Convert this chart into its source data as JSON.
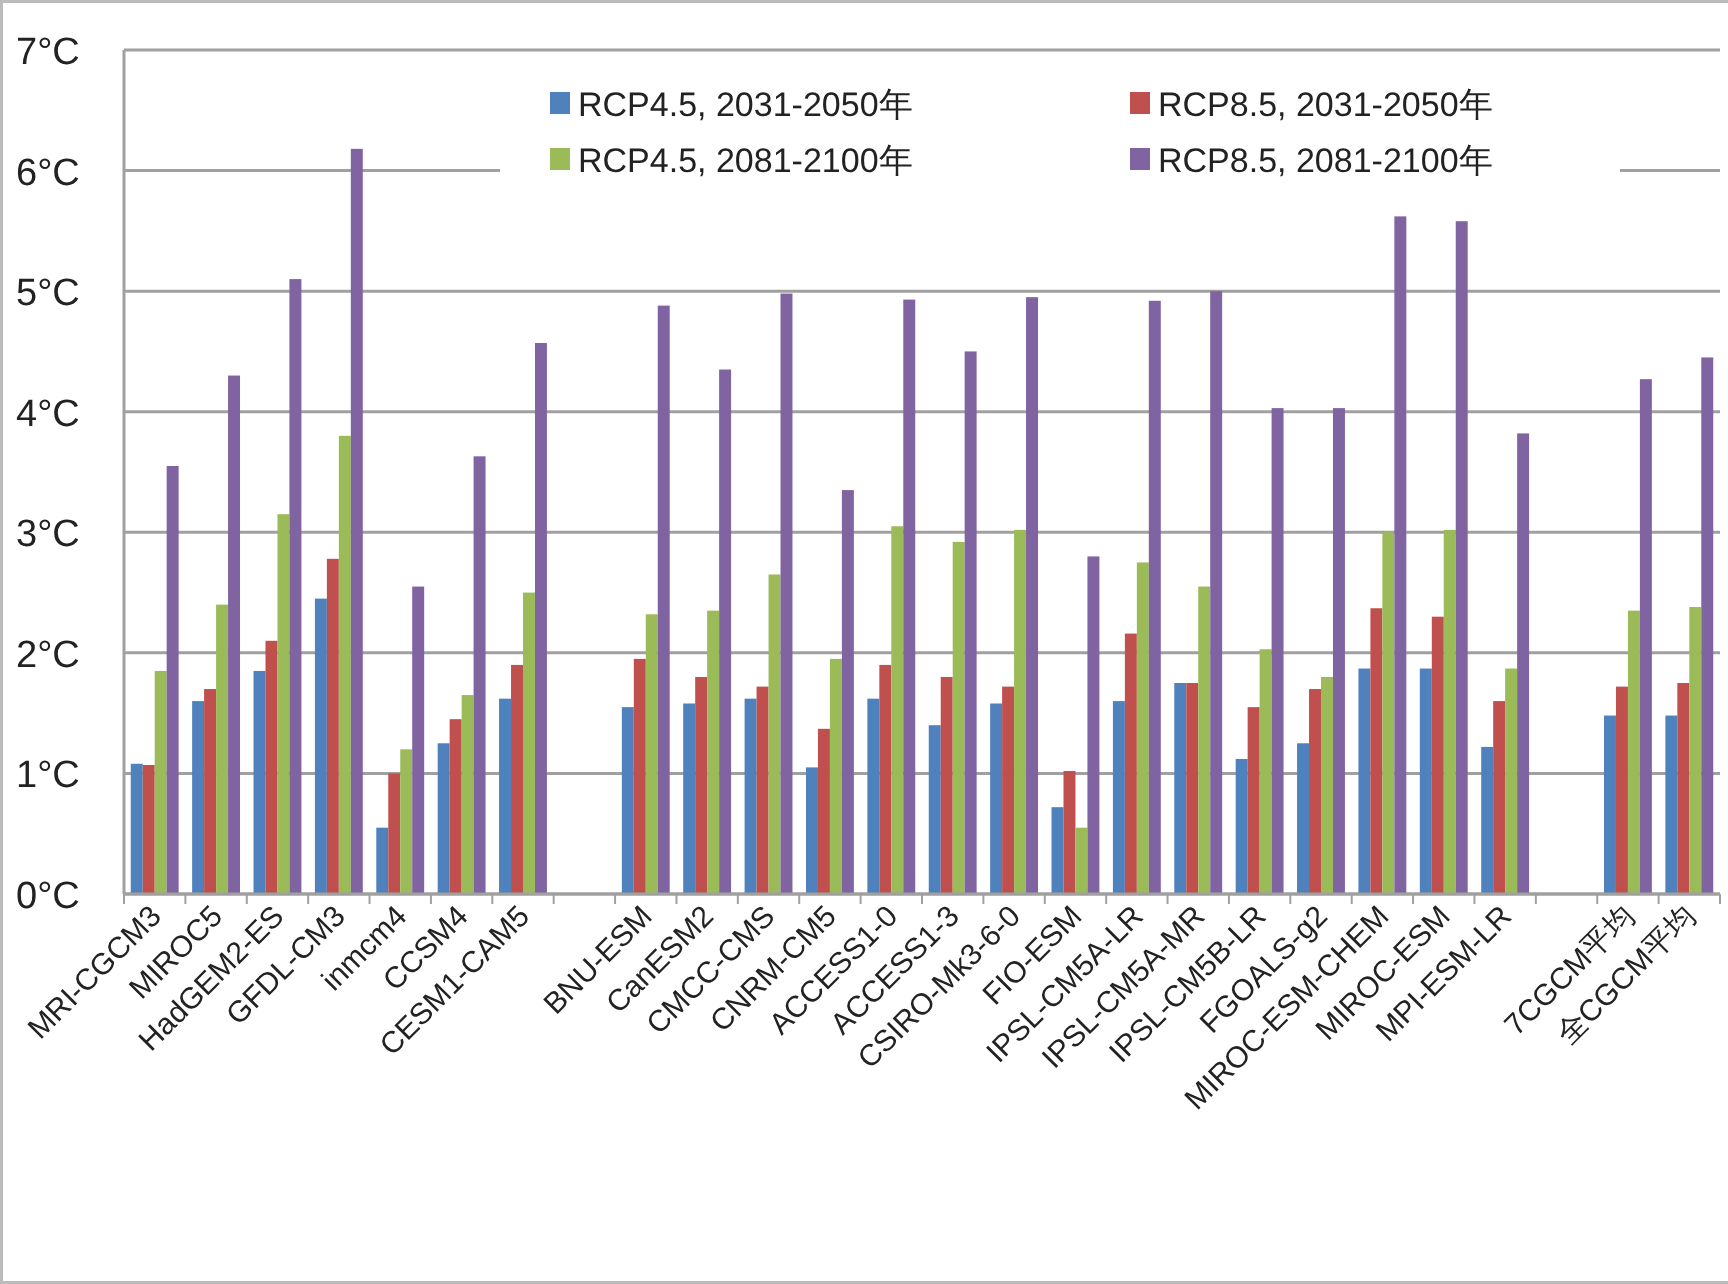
{
  "chart_data": {
    "type": "bar",
    "categories": [
      "MRI-CGCM3",
      "MIROC5",
      "HadGEM2-ES",
      "GFDL-CM3",
      "inmcm4",
      "CCSM4",
      "CESM1-CAM5",
      null,
      "BNU-ESM",
      "CanESM2",
      "CMCC-CMS",
      "CNRM-CM5",
      "ACCESS1-0",
      "ACCESS1-3",
      "CSIRO-Mk3-6-0",
      "FIO-ESM",
      "IPSL-CM5A-LR",
      "IPSL-CM5A-MR",
      "IPSL-CM5B-LR",
      "FGOALS-g2",
      "MIROC-ESM-CHEM",
      "MIROC-ESM",
      "MPI-ESM-LR",
      null,
      "7CGCM平均",
      "全CGCM平均"
    ],
    "series": [
      {
        "name": "RCP4.5, 2031-2050年",
        "color": "#4f81bd",
        "values": [
          1.08,
          1.6,
          1.85,
          2.45,
          0.55,
          1.25,
          1.62,
          null,
          1.55,
          1.58,
          1.62,
          1.05,
          1.62,
          1.4,
          1.58,
          0.72,
          1.6,
          1.75,
          1.12,
          1.25,
          1.87,
          1.87,
          1.22,
          null,
          1.48,
          1.48
        ]
      },
      {
        "name": "RCP8.5, 2031-2050年",
        "color": "#c0504d",
        "values": [
          1.07,
          1.7,
          2.1,
          2.78,
          1.0,
          1.45,
          1.9,
          null,
          1.95,
          1.8,
          1.72,
          1.37,
          1.9,
          1.8,
          1.72,
          1.02,
          2.16,
          1.75,
          1.55,
          1.7,
          2.37,
          2.3,
          1.6,
          null,
          1.72,
          1.75
        ]
      },
      {
        "name": "RCP4.5, 2081-2100年",
        "color": "#9bbb59",
        "values": [
          1.85,
          2.4,
          3.15,
          3.8,
          1.2,
          1.65,
          2.5,
          null,
          2.32,
          2.35,
          2.65,
          1.95,
          3.05,
          2.92,
          3.02,
          0.55,
          2.75,
          2.55,
          2.03,
          1.8,
          3.0,
          3.02,
          1.87,
          null,
          2.35,
          2.38
        ]
      },
      {
        "name": "RCP8.5, 2081-2100年",
        "color": "#8064a2",
        "values": [
          3.55,
          4.3,
          5.1,
          6.18,
          2.55,
          3.63,
          4.57,
          null,
          4.88,
          4.35,
          4.98,
          3.35,
          4.93,
          4.5,
          4.95,
          2.8,
          4.92,
          5.0,
          4.03,
          4.03,
          5.62,
          5.58,
          3.82,
          null,
          4.27,
          4.45
        ]
      }
    ],
    "ylim": [
      0,
      7
    ],
    "yticks": [
      {
        "value": 0,
        "label": "0°C"
      },
      {
        "value": 1,
        "label": "1°C"
      },
      {
        "value": 2,
        "label": "2°C"
      },
      {
        "value": 3,
        "label": "3°C"
      },
      {
        "value": 4,
        "label": "4°C"
      },
      {
        "value": 5,
        "label": "5°C"
      },
      {
        "value": 6,
        "label": "6°C"
      },
      {
        "value": 7,
        "label": "7°C"
      }
    ],
    "grid": "y",
    "legend": "top"
  }
}
